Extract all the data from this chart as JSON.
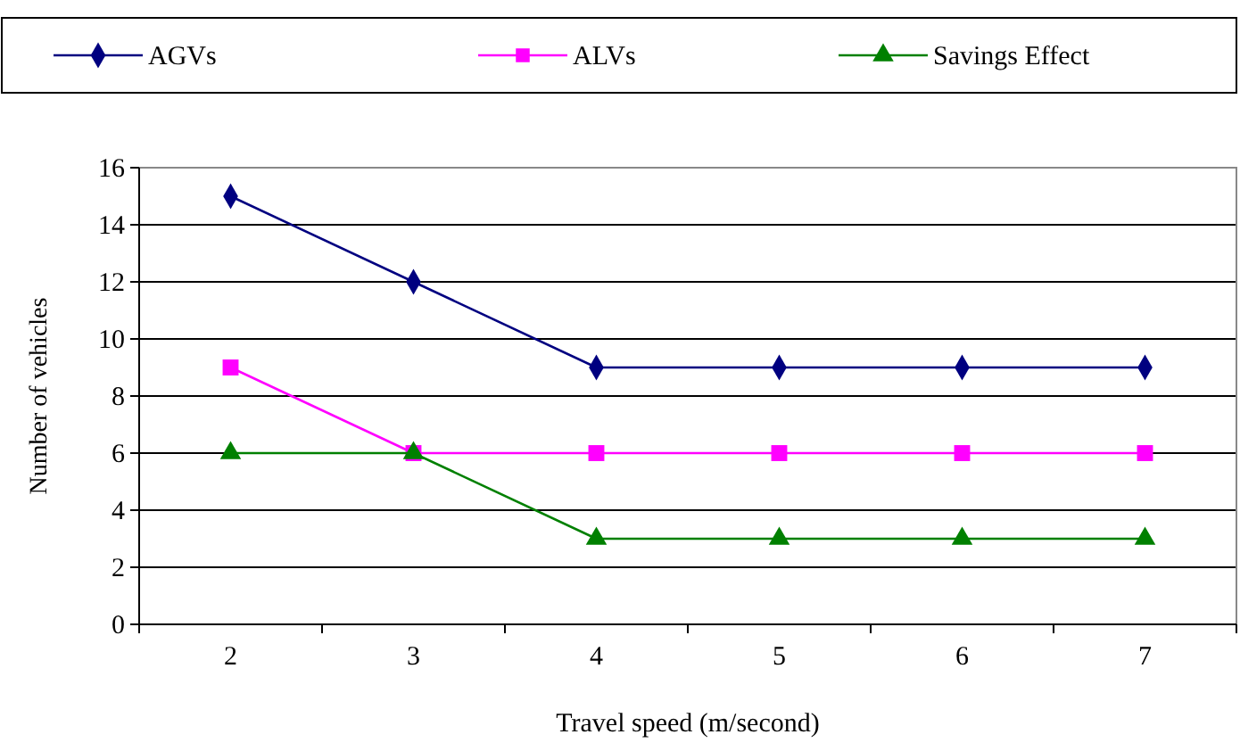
{
  "chart_data": {
    "type": "line",
    "xlabel": "Travel speed (m/second)",
    "ylabel": "Number of vehicles",
    "categories": [
      "2",
      "3",
      "4",
      "5",
      "6",
      "7"
    ],
    "series": [
      {
        "name": "AGVs",
        "color": "#000080",
        "marker": "diamond",
        "values": [
          15,
          12,
          9,
          9,
          9,
          9
        ]
      },
      {
        "name": "ALVs",
        "color": "#ff00ff",
        "marker": "square",
        "values": [
          9,
          6,
          6,
          6,
          6,
          6
        ]
      },
      {
        "name": "Savings Effect",
        "color": "#008000",
        "marker": "triangle",
        "values": [
          6,
          6,
          3,
          3,
          3,
          3
        ]
      }
    ],
    "ylim": [
      0,
      16
    ],
    "yticks": [
      0,
      2,
      4,
      6,
      8,
      10,
      12,
      14,
      16
    ],
    "grid": "y",
    "legend": "top"
  }
}
